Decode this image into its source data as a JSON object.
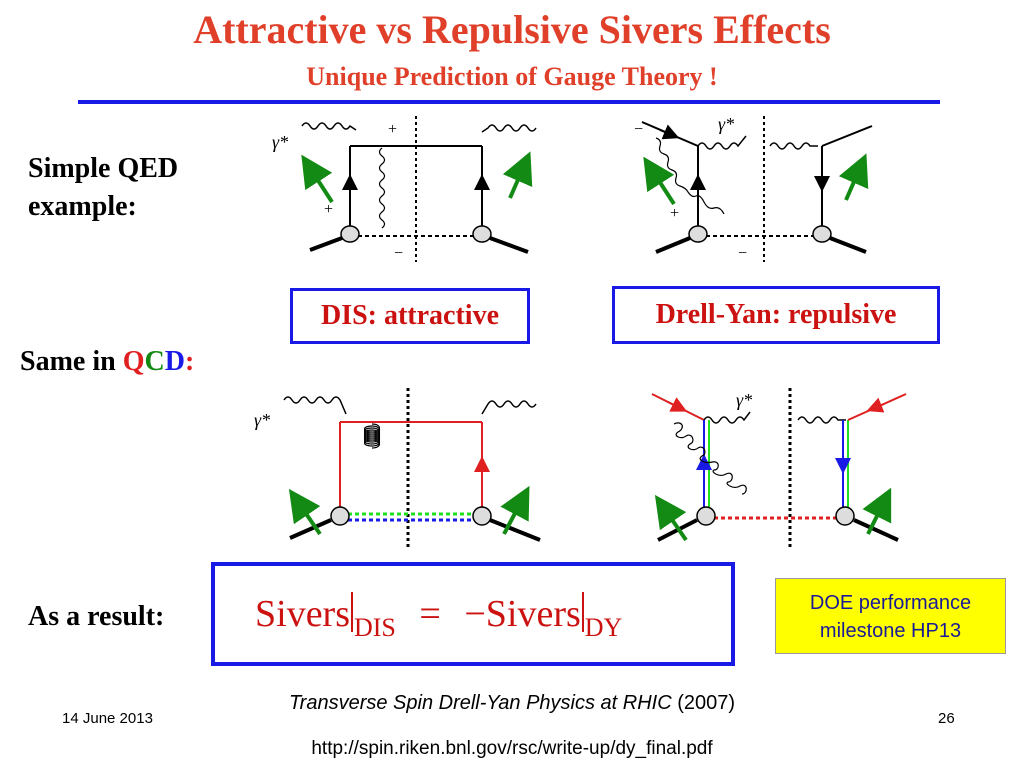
{
  "slide": {
    "title": "Attractive vs Repulsive Sivers Effects",
    "subtitle": "Unique Prediction of Gauge Theory !",
    "qed_label_line1": "Simple QED",
    "qed_label_line2": "example:",
    "qcd_label_prefix": "Same in ",
    "qcd_q1": "Q",
    "qcd_c": "C",
    "qcd_d": "D",
    "qcd_colon": ":",
    "dis_box": "DIS: attractive",
    "dy_box": "Drell-Yan: repulsive",
    "result_label": "As a result:",
    "eq_left": "Sivers",
    "eq_sub_left": "DIS",
    "eq_equals": "=",
    "eq_right": "−Sivers",
    "eq_sub_right": "DY",
    "doe_line1": "DOE performance",
    "doe_line2": "milestone HP13",
    "ref_title": "Transverse Spin Drell-Yan Physics at RHIC",
    "ref_year": " (2007)",
    "url": "http://spin.riken.bnl.gov/rsc/write-up/dy_final.pdf",
    "date": "14 June 2013",
    "page_number": "26"
  },
  "diagrams": {
    "gamma_label": "γ*",
    "plus": "+",
    "minus": "−"
  },
  "colors": {
    "title": "#e0402a",
    "rule": "#1a1ae6",
    "arrow_green": "#138a13",
    "quark_red": "#e02020",
    "antiquark_blue": "#1a1ae6",
    "gluon_green": "#1ee01e",
    "doe_background": "#ffff00"
  }
}
